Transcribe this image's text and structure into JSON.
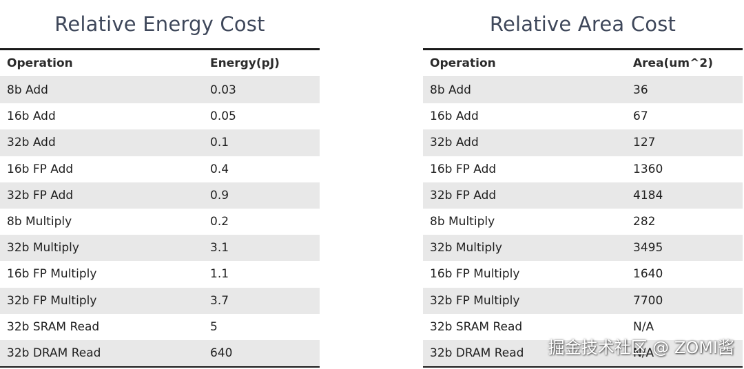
{
  "energy": {
    "title": "Relative Energy Cost",
    "header": {
      "operation": "Operation",
      "value": "Energy(pJ)"
    },
    "rows": [
      {
        "operation": "8b Add",
        "value": "0.03"
      },
      {
        "operation": "16b Add",
        "value": "0.05"
      },
      {
        "operation": "32b Add",
        "value": "0.1"
      },
      {
        "operation": "16b FP Add",
        "value": "0.4"
      },
      {
        "operation": "32b FP Add",
        "value": "0.9"
      },
      {
        "operation": "8b Multiply",
        "value": "0.2"
      },
      {
        "operation": "32b Multiply",
        "value": "3.1"
      },
      {
        "operation": "16b FP Multiply",
        "value": "1.1"
      },
      {
        "operation": "32b FP Multiply",
        "value": "3.7"
      },
      {
        "operation": "32b SRAM Read",
        "value": "5"
      },
      {
        "operation": "32b DRAM Read",
        "value": "640"
      }
    ]
  },
  "area": {
    "title": "Relative Area Cost",
    "header": {
      "operation": "Operation",
      "value": "Area(um^2)"
    },
    "rows": [
      {
        "operation": "8b Add",
        "value": "36"
      },
      {
        "operation": "16b Add",
        "value": "67"
      },
      {
        "operation": "32b Add",
        "value": "127"
      },
      {
        "operation": "16b FP Add",
        "value": "1360"
      },
      {
        "operation": "32b FP Add",
        "value": "4184"
      },
      {
        "operation": "8b Multiply",
        "value": "282"
      },
      {
        "operation": "32b Multiply",
        "value": "3495"
      },
      {
        "operation": "16b FP Multiply",
        "value": "1640"
      },
      {
        "operation": "32b FP Multiply",
        "value": "7700"
      },
      {
        "operation": "32b SRAM Read",
        "value": "N/A"
      },
      {
        "operation": "32b DRAM Read",
        "value": "N/A"
      }
    ]
  },
  "watermark": "掘金技术社区 @ ZOMI酱"
}
